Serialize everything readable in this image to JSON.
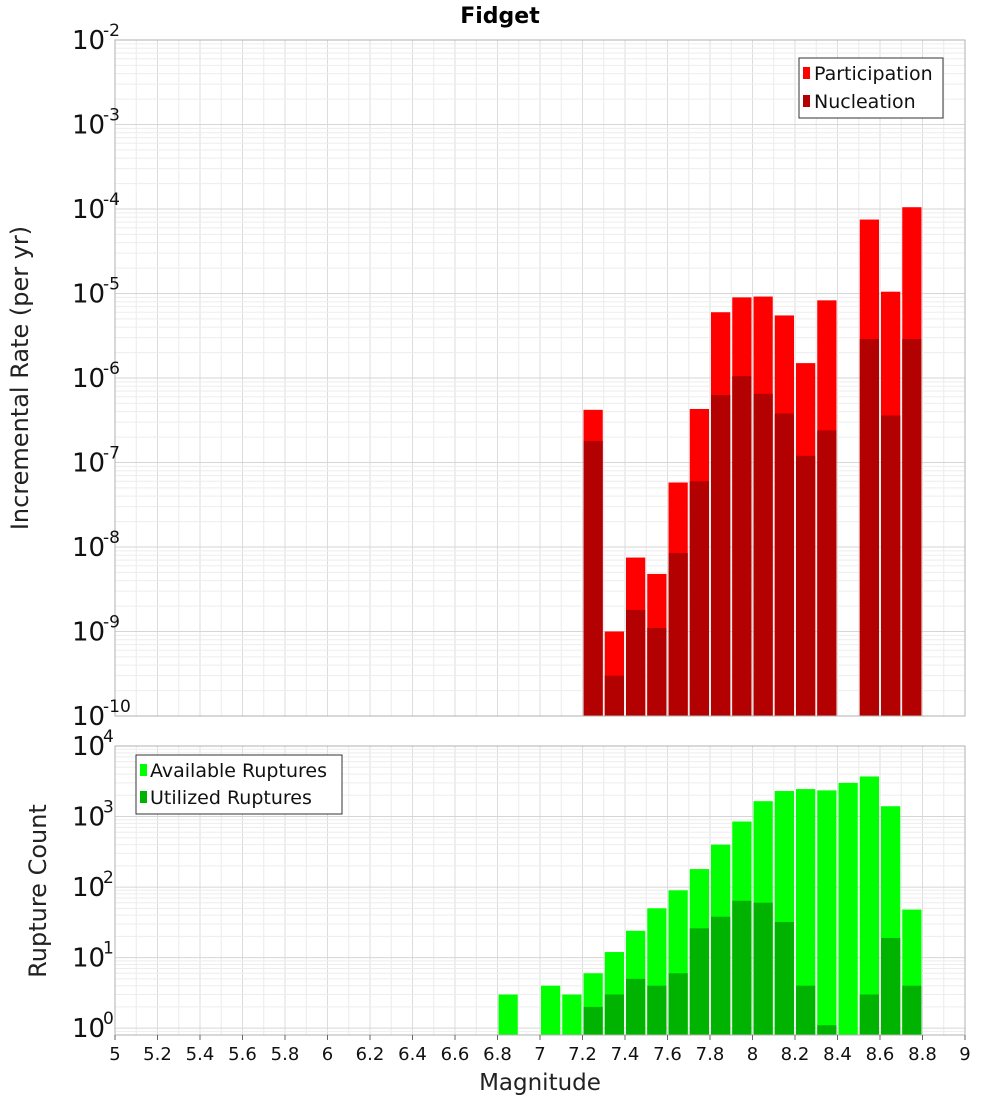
{
  "chart_data": {
    "title": "Fidget",
    "xlabel": "Magnitude",
    "xlim": [
      5,
      9
    ],
    "xticks": [
      "5",
      "5.2",
      "5.4",
      "5.6",
      "5.8",
      "6",
      "6.2",
      "6.4",
      "6.6",
      "6.8",
      "7",
      "7.2",
      "7.4",
      "7.6",
      "7.8",
      "8",
      "8.2",
      "8.4",
      "8.6",
      "8.8",
      "9"
    ],
    "grid": true,
    "bin_width": 0.1,
    "panels": [
      {
        "type": "bar",
        "scale": "log",
        "ylabel": "Incremental Rate (per yr)",
        "ylim": [
          1e-10,
          0.01
        ],
        "ytick_exponents": [
          "-2",
          "-3",
          "-4",
          "-5",
          "-6",
          "-7",
          "-8",
          "-9",
          "-10"
        ],
        "ytick_base": "10",
        "legend_position": "top-right",
        "series": [
          {
            "name": "Participation",
            "color": "#ff0000",
            "points": [
              [
                7.25,
                4.2e-07
              ],
              [
                7.35,
                1e-09
              ],
              [
                7.45,
                7.5e-09
              ],
              [
                7.55,
                4.8e-09
              ],
              [
                7.65,
                5.8e-08
              ],
              [
                7.75,
                4.3e-07
              ],
              [
                7.85,
                6e-06
              ],
              [
                7.95,
                9e-06
              ],
              [
                8.05,
                9.2e-06
              ],
              [
                8.15,
                5.5e-06
              ],
              [
                8.25,
                1.5e-06
              ],
              [
                8.35,
                8.3e-06
              ],
              [
                8.55,
                7.5e-05
              ],
              [
                8.65,
                1.05e-05
              ],
              [
                8.75,
                0.000105
              ]
            ]
          },
          {
            "name": "Nucleation",
            "color": "#b30000",
            "points": [
              [
                7.25,
                1.8e-07
              ],
              [
                7.35,
                3e-10
              ],
              [
                7.45,
                1.8e-09
              ],
              [
                7.55,
                1.1e-09
              ],
              [
                7.65,
                8.5e-09
              ],
              [
                7.75,
                6e-08
              ],
              [
                7.85,
                6.3e-07
              ],
              [
                7.95,
                1.05e-06
              ],
              [
                8.05,
                6.5e-07
              ],
              [
                8.15,
                3.8e-07
              ],
              [
                8.25,
                1.2e-07
              ],
              [
                8.35,
                2.4e-07
              ],
              [
                8.55,
                2.9e-06
              ],
              [
                8.65,
                3.6e-07
              ],
              [
                8.75,
                2.9e-06
              ]
            ]
          }
        ]
      },
      {
        "type": "bar",
        "scale": "log",
        "ylabel": "Rupture Count",
        "ylim": [
          0.8,
          10000
        ],
        "ytick_exponents": [
          "4",
          "3",
          "2",
          "1",
          "0"
        ],
        "ytick_base": "10",
        "legend_position": "top-left",
        "series": [
          {
            "name": "Available Ruptures",
            "color": "#00ff00",
            "points": [
              [
                6.85,
                3
              ],
              [
                7.05,
                4
              ],
              [
                7.15,
                3
              ],
              [
                7.25,
                6
              ],
              [
                7.35,
                12
              ],
              [
                7.45,
                24
              ],
              [
                7.55,
                50
              ],
              [
                7.65,
                90
              ],
              [
                7.75,
                180
              ],
              [
                7.85,
                400
              ],
              [
                7.95,
                850
              ],
              [
                8.05,
                1650
              ],
              [
                8.15,
                2300
              ],
              [
                8.25,
                2450
              ],
              [
                8.35,
                2350
              ],
              [
                8.45,
                3000
              ],
              [
                8.55,
                3700
              ],
              [
                8.65,
                1400
              ],
              [
                8.75,
                48
              ]
            ]
          },
          {
            "name": "Utilized Ruptures",
            "color": "#00b300",
            "points": [
              [
                7.25,
                2
              ],
              [
                7.35,
                3
              ],
              [
                7.45,
                5
              ],
              [
                7.55,
                4
              ],
              [
                7.65,
                6
              ],
              [
                7.75,
                26
              ],
              [
                7.85,
                38
              ],
              [
                7.95,
                64
              ],
              [
                8.05,
                60
              ],
              [
                8.15,
                32
              ],
              [
                8.25,
                4
              ],
              [
                8.35,
                1.1
              ],
              [
                8.55,
                3
              ],
              [
                8.65,
                19
              ],
              [
                8.75,
                4
              ]
            ]
          }
        ]
      }
    ]
  }
}
